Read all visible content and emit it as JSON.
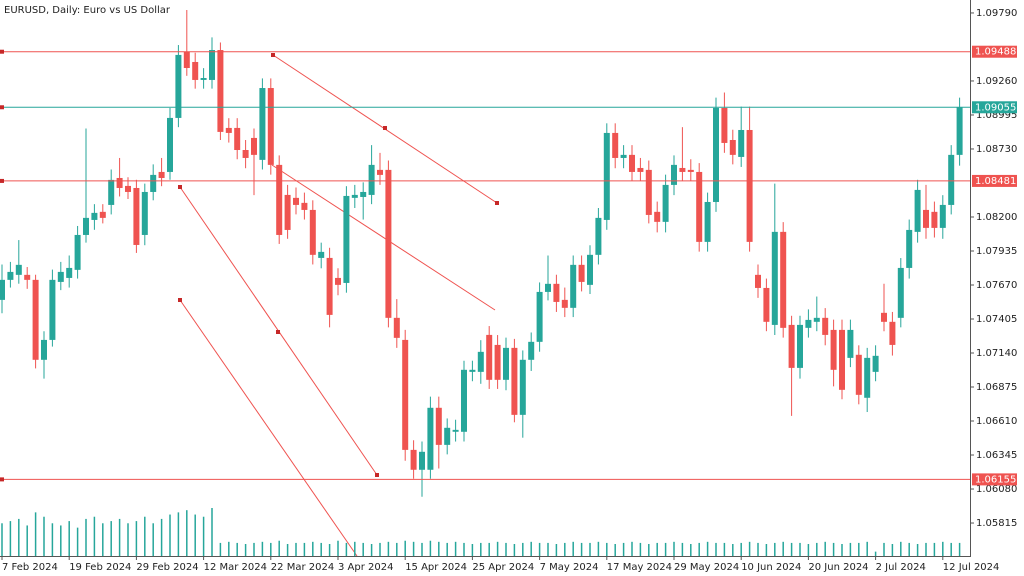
{
  "chart_data": {
    "type": "candlestick",
    "title": "EURUSD, Daily:  Euro vs US Dollar",
    "up_color": "#26a69a",
    "down_color": "#ef5350",
    "volume_color": "#26a69a",
    "ylim": [
      1.05558,
      1.09891
    ],
    "yticks": [
      {
        "value": 1.0979,
        "label": "1.09790"
      },
      {
        "value": 1.0926,
        "label": "1.09260"
      },
      {
        "value": 1.08995,
        "label": "1.08995"
      },
      {
        "value": 1.0873,
        "label": "1.08730"
      },
      {
        "value": 1.082,
        "label": "1.08200"
      },
      {
        "value": 1.07935,
        "label": "1.07935"
      },
      {
        "value": 1.0767,
        "label": "1.07670"
      },
      {
        "value": 1.07405,
        "label": "1.07405"
      },
      {
        "value": 1.0714,
        "label": "1.07140"
      },
      {
        "value": 1.06875,
        "label": "1.06875"
      },
      {
        "value": 1.0661,
        "label": "1.06610"
      },
      {
        "value": 1.06345,
        "label": "1.06345"
      },
      {
        "value": 1.0608,
        "label": "1.06080"
      },
      {
        "value": 1.05815,
        "label": "1.05815"
      }
    ],
    "xticks": [
      {
        "value": 0,
        "label": "7 Feb 2024"
      },
      {
        "value": 8,
        "label": "19 Feb 2024"
      },
      {
        "value": 16,
        "label": "29 Feb 2024"
      },
      {
        "value": 24,
        "label": "12 Mar 2024"
      },
      {
        "value": 32,
        "label": "22 Mar 2024"
      },
      {
        "value": 40,
        "label": "3 Apr 2024"
      },
      {
        "value": 48,
        "label": "15 Apr 2024"
      },
      {
        "value": 56,
        "label": "25 Apr 2024"
      },
      {
        "value": 64,
        "label": "7 May 2024"
      },
      {
        "value": 72,
        "label": "17 May 2024"
      },
      {
        "value": 80,
        "label": "29 May 2024"
      },
      {
        "value": 88,
        "label": "10 Jun 2024"
      },
      {
        "value": 96,
        "label": "20 Jun 2024"
      },
      {
        "value": 104,
        "label": "2 Jul 2024"
      },
      {
        "value": 112,
        "label": "12 Jul 2024"
      }
    ],
    "levels": [
      {
        "price": 1.09488,
        "color": "#ef5350"
      },
      {
        "price": 1.09055,
        "color": "#26a69a"
      },
      {
        "price": 1.08481,
        "color": "#ef5350"
      },
      {
        "price": 1.06155,
        "color": "#ef5350"
      }
    ],
    "open": [
      1.07554,
      1.0771,
      1.07749,
      1.07749,
      1.0771,
      1.07087,
      1.07242,
      1.07694,
      1.07725,
      1.07788,
      1.0806,
      1.08177,
      1.0824,
      1.08294,
      1.08504,
      1.08442,
      1.08426,
      1.0806,
      1.08395,
      1.08551,
      1.08551,
      1.08972,
      1.09486,
      1.09408,
      1.09268,
      1.09268,
      1.09501,
      1.08894,
      1.08894,
      1.08722,
      1.08816,
      1.08645,
      1.09205,
      1.08606,
      1.08372,
      1.08349,
      1.0831,
      1.08255,
      1.07881,
      1.07881,
      1.07725,
      1.07686,
      1.08349,
      1.08356,
      1.08372,
      1.08567,
      1.08567,
      1.07414,
      1.07242,
      1.06385,
      1.0623,
      1.0623,
      1.06713,
      1.06424,
      1.06526,
      1.06526,
      1.06993,
      1.06993,
      1.07281,
      1.07203,
      1.06931,
      1.0718,
      1.06658,
      1.07087,
      1.07227,
      1.07616,
      1.07679,
      1.07554,
      1.07492,
      1.07827,
      1.07671,
      1.07905,
      1.08177,
      1.08855,
      1.0866,
      1.08684,
      1.08582,
      1.08567,
      1.0824,
      1.08162,
      1.0845,
      1.08582,
      1.08567,
      1.08551,
      1.08006,
      1.08317,
      1.0905,
      1.088,
      1.08668,
      1.08878,
      1.07749,
      1.07647,
      1.07359,
      1.08084,
      1.07359,
      1.07024,
      1.07336,
      1.07383,
      1.07414,
      1.0732,
      1.0732,
      1.07102,
      1.07126,
      1.06791,
      1.06993,
      1.07453,
      1.07383,
      1.07414,
      1.07803,
      1.08084,
      1.08255,
      1.0824,
      1.08115,
      1.08294,
      1.08684
    ],
    "close": [
      1.0771,
      1.07772,
      1.07827,
      1.0771,
      1.07087,
      1.07242,
      1.0771,
      1.07772,
      1.07803,
      1.0806,
      1.08193,
      1.08232,
      1.08193,
      1.08489,
      1.08426,
      1.08395,
      1.07982,
      1.08395,
      1.08528,
      1.08504,
      1.08972,
      1.09463,
      1.09361,
      1.09268,
      1.09283,
      1.09501,
      1.08863,
      1.08855,
      1.08722,
      1.0866,
      1.08684,
      1.09205,
      1.08606,
      1.0806,
      1.08099,
      1.08294,
      1.08255,
      1.07905,
      1.07928,
      1.07437,
      1.07671,
      1.08364,
      1.08372,
      1.08395,
      1.08606,
      1.08528,
      1.07414,
      1.07258,
      1.06385,
      1.0623,
      1.0637,
      1.06713,
      1.06424,
      1.06557,
      1.06541,
      1.07009,
      1.07009,
      1.07149,
      1.06931,
      1.06931,
      1.0718,
      1.06658,
      1.07087,
      1.07227,
      1.07616,
      1.07679,
      1.07538,
      1.07492,
      1.07827,
      1.07694,
      1.07905,
      1.08193,
      1.08855,
      1.0866,
      1.08684,
      1.08551,
      1.08551,
      1.08216,
      1.08162,
      1.0845,
      1.08606,
      1.08551,
      1.08551,
      1.08006,
      1.08317,
      1.0905,
      1.08777,
      1.08684,
      1.08878,
      1.08006,
      1.07647,
      1.07383,
      1.08084,
      1.07336,
      1.07024,
      1.07359,
      1.07398,
      1.07414,
      1.07281,
      1.07009,
      1.06853,
      1.0732,
      1.06814,
      1.07102,
      1.07118,
      1.07383,
      1.07203,
      1.07803,
      1.08099,
      1.08411,
      1.08115,
      1.08115,
      1.08294,
      1.08684,
      1.09055
    ],
    "high": [
      1.0783,
      1.0785,
      1.0802,
      1.0781,
      1.0775,
      1.0731,
      1.0779,
      1.0785,
      1.079,
      1.0813,
      1.0889,
      1.083,
      1.083,
      1.0857,
      1.0866,
      1.0851,
      1.0849,
      1.0846,
      1.0861,
      1.0866,
      1.0905,
      1.0954,
      1.09813,
      1.0948,
      1.0936,
      1.096,
      1.0956,
      1.0897,
      1.0897,
      1.088,
      1.0889,
      1.0928,
      1.0928,
      1.0868,
      1.0845,
      1.0843,
      1.0839,
      1.0833,
      1.08,
      1.0796,
      1.078,
      1.0844,
      1.0845,
      1.0847,
      1.0876,
      1.087,
      1.0864,
      1.0756,
      1.0732,
      1.0646,
      1.0645,
      1.068,
      1.068,
      1.0663,
      1.0662,
      1.0708,
      1.0708,
      1.0724,
      1.0735,
      1.0728,
      1.0726,
      1.0725,
      1.0716,
      1.073,
      1.0769,
      1.079,
      1.0775,
      1.0765,
      1.079,
      1.079,
      1.0798,
      1.0827,
      1.0893,
      1.0893,
      1.0876,
      1.0876,
      1.0866,
      1.0864,
      1.0832,
      1.0853,
      1.0868,
      1.089,
      1.0865,
      1.0862,
      1.0839,
      1.0913,
      1.0917,
      1.0888,
      1.0906,
      1.0906,
      1.0783,
      1.0772,
      1.0846,
      1.0816,
      1.0743,
      1.0743,
      1.0748,
      1.0758,
      1.0749,
      1.074,
      1.074,
      1.074,
      1.072,
      1.0718,
      1.072,
      1.0768,
      1.0746,
      1.0788,
      1.0818,
      1.0849,
      1.0845,
      1.0832,
      1.0837,
      1.0876,
      1.0913
    ],
    "low": [
      1.0745,
      1.0765,
      1.0768,
      1.0764,
      1.0702,
      1.0694,
      1.0719,
      1.0763,
      1.0765,
      1.0772,
      1.08,
      1.081,
      1.0815,
      1.0822,
      1.0836,
      1.0834,
      1.0792,
      1.0798,
      1.0833,
      1.0844,
      1.0849,
      1.089,
      1.093,
      1.092,
      1.092,
      1.092,
      1.088,
      1.0878,
      1.0865,
      1.0858,
      1.0837,
      1.0857,
      1.0853,
      1.0799,
      1.0803,
      1.0822,
      1.0818,
      1.0783,
      1.078,
      1.0734,
      1.0759,
      1.0761,
      1.0827,
      1.0818,
      1.083,
      1.0845,
      1.0734,
      1.0718,
      1.063,
      1.0616,
      1.0602,
      1.0616,
      1.0624,
      1.0635,
      1.0645,
      1.0645,
      1.0692,
      1.069,
      1.0686,
      1.0686,
      1.0685,
      1.066,
      1.0648,
      1.07,
      1.0715,
      1.0755,
      1.0746,
      1.0742,
      1.0742,
      1.0762,
      1.076,
      1.0783,
      1.081,
      1.0858,
      1.0858,
      1.0848,
      1.0848,
      1.0815,
      1.0808,
      1.0808,
      1.0837,
      1.0848,
      1.0848,
      1.0793,
      1.0793,
      1.0824,
      1.087,
      1.0861,
      1.0859,
      1.0793,
      1.0757,
      1.0731,
      1.0728,
      1.0726,
      1.0665,
      1.0694,
      1.0726,
      1.0731,
      1.072,
      1.0688,
      1.0678,
      1.0703,
      1.0674,
      1.0668,
      1.0692,
      1.0731,
      1.0712,
      1.0734,
      1.0772,
      1.08,
      1.0803,
      1.0804,
      1.0803,
      1.0822,
      1.086
    ],
    "volume": [
      30,
      32,
      34,
      28,
      40,
      36,
      30,
      28,
      32,
      26,
      34,
      36,
      30,
      32,
      34,
      30,
      32,
      36,
      30,
      34,
      38,
      40,
      42,
      38,
      36,
      44,
      12,
      13,
      12,
      11,
      12,
      13,
      12,
      14,
      11,
      12,
      12,
      13,
      12,
      11,
      14,
      12,
      13,
      12,
      11,
      12,
      13,
      12,
      14,
      13,
      12,
      14,
      13,
      12,
      13,
      12,
      11,
      12,
      12,
      13,
      12,
      11,
      12,
      13,
      12,
      12,
      11,
      12,
      13,
      12,
      12,
      13,
      12,
      11,
      12,
      13,
      12,
      11,
      12,
      12,
      13,
      12,
      11,
      12,
      13,
      12,
      12,
      11,
      12,
      13,
      12,
      11,
      12,
      13,
      12,
      12,
      11,
      12,
      13,
      12,
      11,
      12,
      12,
      13,
      4,
      12,
      11,
      13,
      12,
      11,
      12,
      12,
      13,
      12,
      12
    ]
  }
}
